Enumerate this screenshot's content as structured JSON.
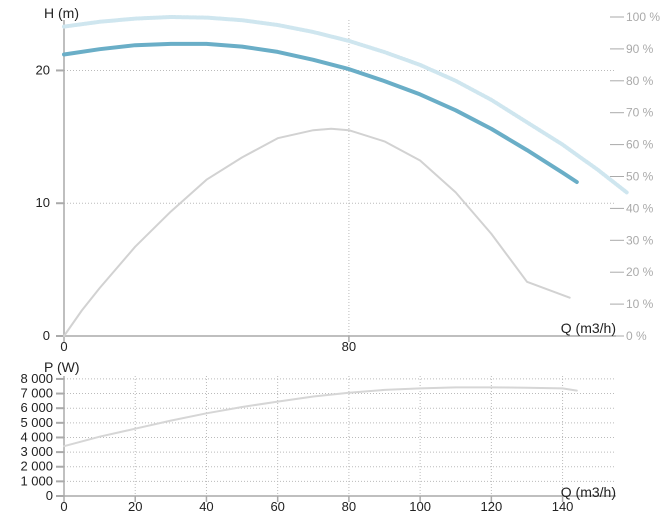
{
  "colors": {
    "head": "#6aaec7",
    "efficiency_upper": "#cfe6ef",
    "efficiency": "#d2d2d2",
    "power": "#d6d6d6",
    "grid": "#bbbbbb",
    "axis": "#aaaaaa",
    "text": "#222222",
    "right_axis": "#aaaaaa"
  },
  "chart_data": [
    {
      "type": "line",
      "title": "",
      "xlabel": "Q (m3/h)",
      "ylabel": "H (m)",
      "y2label": "",
      "xlim": [
        0,
        155
      ],
      "ylim": [
        0,
        23.8
      ],
      "y2lim": [
        0,
        100
      ],
      "x_ticks": [
        {
          "value": 0,
          "label": "0"
        },
        {
          "value": 80,
          "label": "80"
        }
      ],
      "y_ticks": [
        {
          "value": 0,
          "label": "0"
        },
        {
          "value": 10,
          "label": "10"
        },
        {
          "value": 20,
          "label": "20"
        }
      ],
      "y2_ticks": [
        {
          "value": 0,
          "label": "0 %"
        },
        {
          "value": 10,
          "label": "10 %"
        },
        {
          "value": 20,
          "label": "20 %"
        },
        {
          "value": 30,
          "label": "30 %"
        },
        {
          "value": 40,
          "label": "40 %"
        },
        {
          "value": 50,
          "label": "50 %"
        },
        {
          "value": 60,
          "label": "60 %"
        },
        {
          "value": 70,
          "label": "70 %"
        },
        {
          "value": 80,
          "label": "80 %"
        },
        {
          "value": 90,
          "label": "90 %"
        },
        {
          "value": 100,
          "label": "100 %"
        }
      ],
      "series": [
        {
          "axis": "left",
          "color_key": "head",
          "stroke": "thick",
          "x": [
            0,
            10,
            20,
            30,
            40,
            50,
            60,
            70,
            80,
            90,
            100,
            110,
            120,
            130,
            140,
            144
          ],
          "y": [
            21.2,
            21.6,
            21.9,
            22.0,
            22.0,
            21.8,
            21.4,
            20.8,
            20.1,
            19.2,
            18.2,
            17.0,
            15.6,
            14.0,
            12.3,
            11.6
          ]
        },
        {
          "axis": "right",
          "color_key": "efficiency_upper",
          "stroke": "dotted",
          "x": [
            0,
            10,
            20,
            30,
            40,
            50,
            60,
            70,
            80,
            90,
            100,
            110,
            120,
            130,
            140,
            150,
            158
          ],
          "y": [
            97,
            98.5,
            99.5,
            100,
            99.8,
            99,
            97.5,
            95.3,
            92.5,
            89,
            85,
            80,
            74,
            67,
            60,
            52,
            45
          ]
        },
        {
          "axis": "right",
          "color_key": "efficiency",
          "stroke": "thin",
          "x": [
            0,
            5,
            10,
            20,
            30,
            40,
            50,
            60,
            70,
            75,
            80,
            90,
            100,
            110,
            120,
            130,
            142
          ],
          "y": [
            0,
            8,
            15,
            28,
            39,
            49,
            56,
            62,
            64.5,
            65,
            64.5,
            61,
            55,
            45,
            32,
            17,
            12
          ]
        }
      ]
    },
    {
      "type": "line",
      "title": "",
      "xlabel": "Q (m3/h)",
      "ylabel": "P (W)",
      "xlim": [
        0,
        155
      ],
      "ylim": [
        0,
        8200
      ],
      "x_ticks": [
        {
          "value": 0,
          "label": "0"
        },
        {
          "value": 20,
          "label": "20"
        },
        {
          "value": 40,
          "label": "40"
        },
        {
          "value": 60,
          "label": "60"
        },
        {
          "value": 80,
          "label": "80"
        },
        {
          "value": 100,
          "label": "100"
        },
        {
          "value": 120,
          "label": "120"
        },
        {
          "value": 140,
          "label": "140"
        }
      ],
      "y_ticks": [
        {
          "value": 0,
          "label": "0"
        },
        {
          "value": 1000,
          "label": "1 000"
        },
        {
          "value": 2000,
          "label": "2 000"
        },
        {
          "value": 3000,
          "label": "3 000"
        },
        {
          "value": 4000,
          "label": "4 000"
        },
        {
          "value": 5000,
          "label": "5 000"
        },
        {
          "value": 6000,
          "label": "6 000"
        },
        {
          "value": 7000,
          "label": "7 000"
        },
        {
          "value": 8000,
          "label": "8 000"
        }
      ],
      "series": [
        {
          "axis": "left",
          "color_key": "power",
          "stroke": "thin",
          "x": [
            0,
            10,
            20,
            30,
            40,
            50,
            60,
            70,
            80,
            90,
            100,
            110,
            120,
            130,
            140,
            144
          ],
          "y": [
            3400,
            4050,
            4600,
            5150,
            5650,
            6080,
            6450,
            6800,
            7050,
            7250,
            7350,
            7420,
            7420,
            7400,
            7350,
            7200
          ]
        }
      ]
    }
  ]
}
